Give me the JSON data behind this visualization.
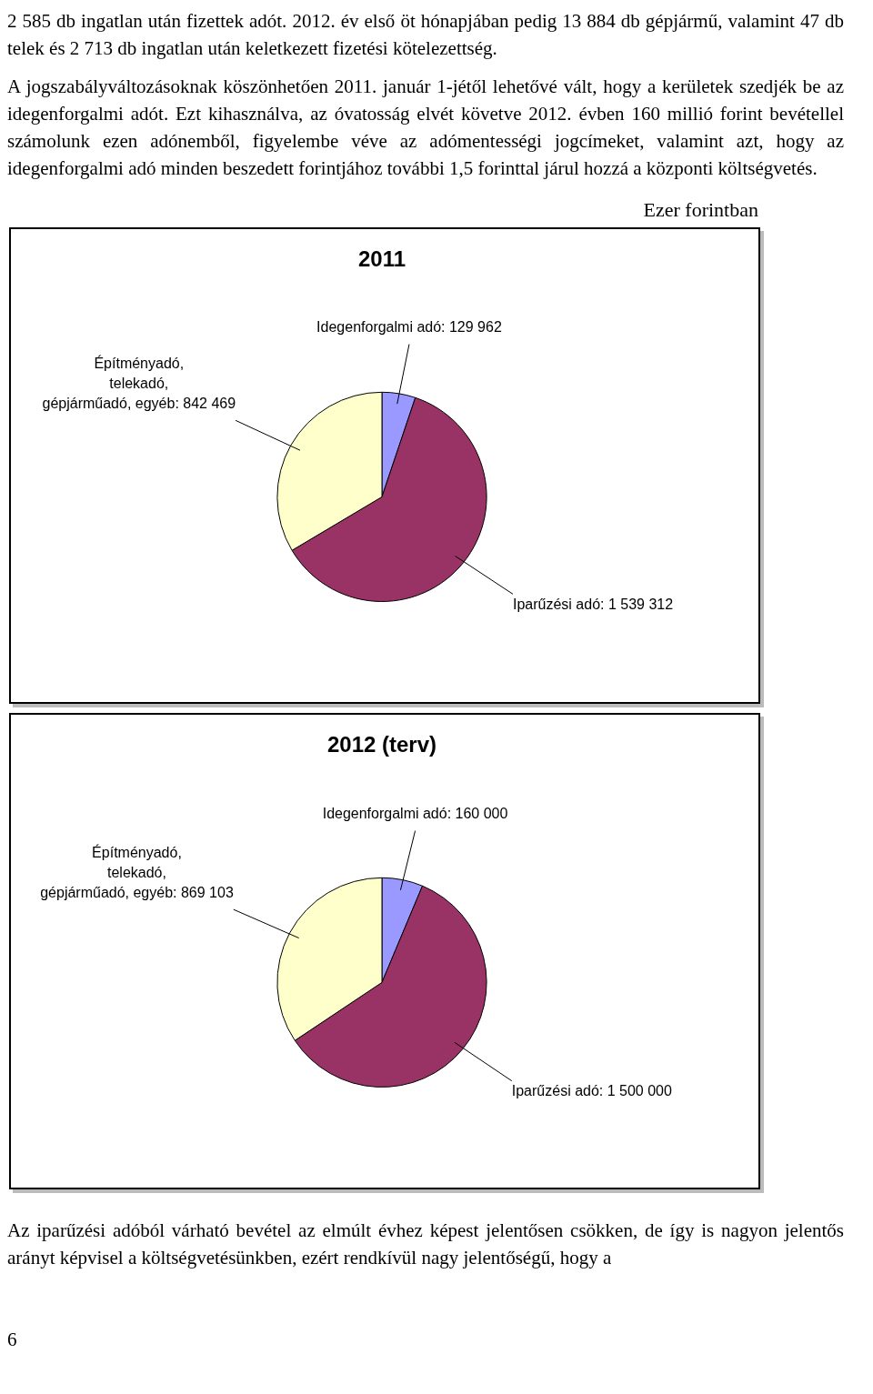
{
  "chart_data": [
    {
      "type": "pie",
      "title": "2011",
      "subtitle": "Ezer forintban",
      "categories": [
        "Idegenforgalmi adó",
        "Iparűzési adó",
        "Építményadó, telekadó, gépjárműadó, egyéb"
      ],
      "values": [
        129962,
        1539312,
        842469
      ],
      "value_labels": [
        "129 962",
        "1 539 312",
        "842 469"
      ],
      "colors": [
        "#9999ff",
        "#993366",
        "#ffffcc"
      ],
      "annotations": [
        "2 585 db ingatlan után fizettek adót. 2012. év első öt hónapjában pedig 13 884 db gépjármű, valamint 47 db telek és 2 713 db ingatlan után keletkezett fizetési kötelezettség.",
        "A jogszabályváltozásoknak köszönhetően 2011. január 1-jétől lehetővé vált, hogy a kerületek szedjék be az idegenforgalmi adót. Ezt kihasználva, az óvatosság elvét követve 2012. évben 160 millió forint bevétellel számolunk ezen adónemből, figyelembe véve az adómentességi jogcímeket, valamint azt, hogy az idegenforgalmi adó minden beszedett forintjához további 1,5 forinttal járul hozzá a központi költségvetés."
      ]
    },
    {
      "type": "pie",
      "title": "2012 (terv)",
      "categories": [
        "Idegenforgalmi adó",
        "Iparűzési adó",
        "Építményadó, telekadó, gépjárműadó, egyéb"
      ],
      "values": [
        160000,
        1500000,
        869103
      ],
      "value_labels": [
        "160 000",
        "1 500 000",
        "869 103"
      ],
      "colors": [
        "#9999ff",
        "#993366",
        "#ffffcc"
      ],
      "annotations": [
        "Az iparűzési adóból várható bevétel az elmúlt évhez képest jelentősen csökken, de így is nagyon jelentős arányt képvisel a költségvetésünkben, ezért rendkívül nagy jelentőségű, hogy a",
        "6"
      ]
    }
  ]
}
